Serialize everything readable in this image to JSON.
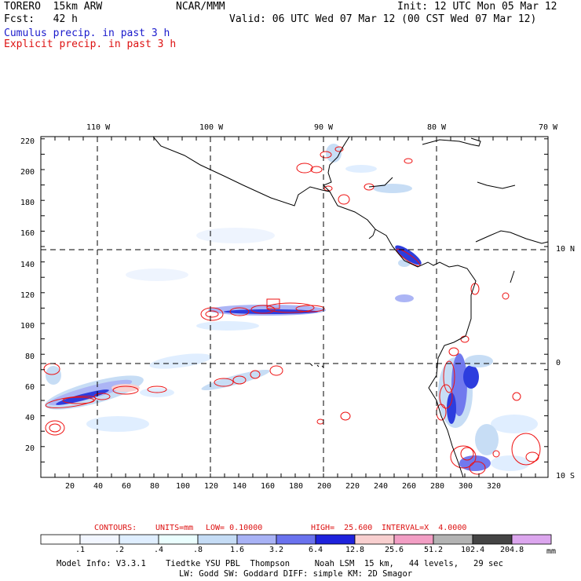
{
  "header": {
    "model": "TORERO  15km ARW",
    "org": "NCAR/MMM",
    "init": "Init: 12 UTC Mon 05 Mar 12",
    "fcst": "Fcst:   42 h",
    "valid": "Valid: 06 UTC Wed 07 Mar 12 (00 CST Wed 07 Mar 12)",
    "legend_cumulus": "Cumulus precip. in past 3 h",
    "legend_explicit": "Explicit precip. in past 3 h"
  },
  "map": {
    "lon_labels": [
      "110 W",
      "100 W",
      "90 W",
      "80 W",
      "70 W"
    ],
    "lat_labels": [
      "10 N",
      "0",
      "10 S"
    ],
    "y_ticks": [
      "220",
      "200",
      "180",
      "160",
      "140",
      "120",
      "100",
      "80",
      "60",
      "40",
      "20"
    ],
    "x_ticks": [
      "20",
      "40",
      "60",
      "80",
      "100",
      "120",
      "140",
      "160",
      "180",
      "200",
      "220",
      "240",
      "260",
      "280",
      "300",
      "320"
    ],
    "colors": {
      "coast": "#000000",
      "grid": "#000000",
      "cumulus": "#2233dd",
      "explicit": "#ee1111"
    }
  },
  "contours": {
    "label": "CONTOURS:",
    "units": "UNITS=mm",
    "low": "LOW= 0.10000",
    "high": "HIGH=  25.600",
    "interval": "INTERVAL=X  4.0000"
  },
  "colorbar": {
    "levels": [
      ".1",
      ".2",
      ".4",
      ".8",
      "1.6",
      "3.2",
      "6.4",
      "12.8",
      "25.6",
      "51.2",
      "102.4",
      "204.8"
    ],
    "unit": "mm",
    "colors": [
      "#ffffff",
      "#f2f6ff",
      "#dfeeff",
      "#eafefe",
      "#c5dcf5",
      "#a8b2f5",
      "#6a72ee",
      "#1e22dc",
      "#f8cfcf",
      "#f29ec4",
      "#b3b3b3",
      "#444444",
      "#dca6ee"
    ]
  },
  "footer": {
    "line1": "Model Info: V3.3.1    Tiedtke YSU PBL  Thompson     Noah LSM  15 km,   44 levels,   29 sec",
    "line2": "LW: Godd SW: Goddard DIFF: simple KM: 2D Smagor"
  }
}
